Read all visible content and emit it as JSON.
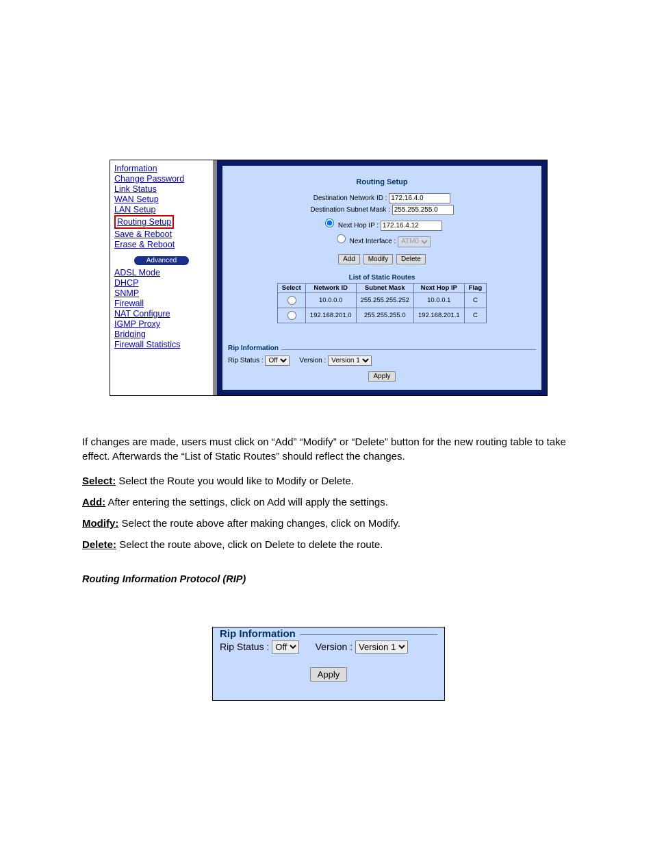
{
  "sidebar": {
    "items": [
      {
        "label": "Information"
      },
      {
        "label": "Change Password"
      },
      {
        "label": "Link Status"
      },
      {
        "label": "WAN Setup"
      },
      {
        "label": "LAN Setup"
      },
      {
        "label": "Routing Setup"
      },
      {
        "label": "Save & Reboot"
      },
      {
        "label": "Erase & Reboot"
      }
    ],
    "adv_label": "Advanced",
    "adv_items": [
      {
        "label": "ADSL Mode"
      },
      {
        "label": "DHCP"
      },
      {
        "label": "SNMP"
      },
      {
        "label": "Firewall"
      },
      {
        "label": "NAT Configure"
      },
      {
        "label": "IGMP Proxy"
      },
      {
        "label": "Bridging"
      },
      {
        "label": "Firewall Statistics"
      }
    ]
  },
  "panel": {
    "title": "Routing Setup",
    "dest_net_label": "Destination Network ID :",
    "dest_net_value": "172.16.4.0",
    "dest_mask_label": "Destination Subnet Mask :",
    "dest_mask_value": "255.255.255.0",
    "next_hop_label": "Next Hop IP :",
    "next_hop_value": "172.16.4.12",
    "next_if_label": "Next Interface :",
    "next_if_value": "ATM0",
    "btn_add": "Add",
    "btn_modify": "Modify",
    "btn_delete": "Delete",
    "table_title": "List of Static Routes",
    "cols": [
      "Select",
      "Network ID",
      "Subnet Mask",
      "Next Hop IP",
      "Flag"
    ],
    "rows": [
      [
        "",
        "10.0.0.0",
        "255.255.255.252",
        "10.0.0.1",
        "C"
      ],
      [
        "",
        "192.168.201.0",
        "255.255.255.0",
        "192.168.201.1",
        "C"
      ]
    ],
    "rip_title": "Rip Information",
    "rip_status_label": "Rip Status :",
    "rip_status_value": "Off",
    "rip_version_label": "Version :",
    "rip_version_value": "Version 1",
    "apply": "Apply"
  },
  "body": {
    "p1": "If changes are made, users must click on “Add” “Modify” or “Delete” button for the new routing table to take effect. Afterwards the “List of Static Routes” should reflect the changes.",
    "b1_label": "Select:",
    "b1_text": " Select the Route you would like to Modify or Delete.",
    "b2_label": "Add:",
    "b2_text": " After entering the settings, click on Add will apply the settings.",
    "b3_label": "Modify:",
    "b3_text": " Select the route above after making changes, click on Modify.",
    "b4_label": "Delete:",
    "b4_text": " Select the route above, click on Delete to delete the route.",
    "section": "Routing Information Protocol (RIP)"
  },
  "rip_crop": {
    "title": "Rip Information",
    "status_label": "Rip Status :",
    "status_value": "Off",
    "version_label": "Version :",
    "version_value": "Version 1",
    "apply": "Apply"
  },
  "style": {
    "panel_bg": "#c7dbff",
    "panel_border": "#0a1a66",
    "link_color": "#0000cc",
    "highlight_border": "#d00000",
    "adv_badge_bg": "#1a2e8a"
  }
}
